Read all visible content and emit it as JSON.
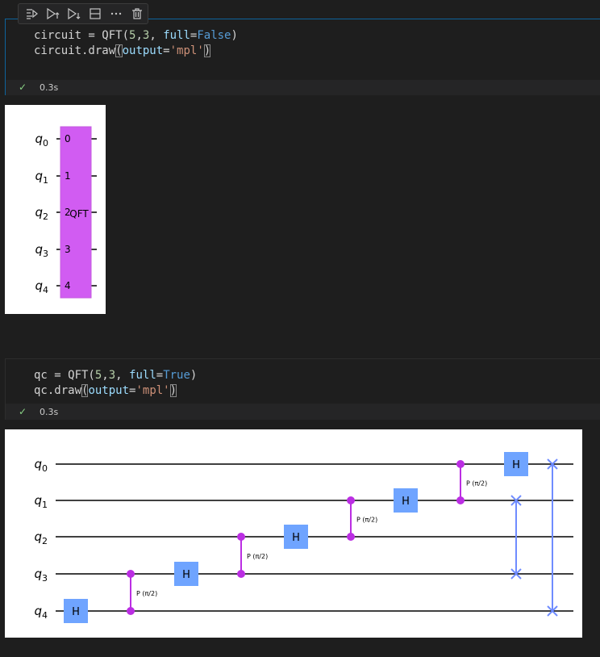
{
  "toolbar": {
    "buttons": [
      "run-by-line-icon",
      "execute-above-icon",
      "execute-below-icon",
      "split-cell-icon",
      "more-icon",
      "delete-icon"
    ]
  },
  "cell1": {
    "line1": {
      "a": "circuit = QFT(",
      "b": "5",
      "c": ",",
      "d": "3",
      "e": ", ",
      "f": "full",
      "g": "=",
      "h": "False",
      "i": ")"
    },
    "line2": {
      "a": "circuit.draw",
      "b": "(",
      "c": "output",
      "d": "=",
      "e": "'mpl'",
      "f": ")"
    },
    "status_check": "✓",
    "status_time": "0.3s"
  },
  "cell2": {
    "line1": {
      "a": "qc = QFT(",
      "b": "5",
      "c": ",",
      "d": "3",
      "e": ", ",
      "f": "full",
      "g": "=",
      "h": "True",
      "i": ")"
    },
    "line2": {
      "a": "qc.draw",
      "b": "(",
      "c": "output",
      "d": "=",
      "e": "'mpl'",
      "f": ")"
    },
    "status_check": "✓",
    "status_time": "0.3s"
  },
  "output1": {
    "qubit_labels": [
      "q",
      "q",
      "q",
      "q",
      "q"
    ],
    "qubit_subs": [
      "0",
      "1",
      "2",
      "3",
      "4"
    ],
    "block_indices": [
      "0",
      "1",
      "2",
      "3",
      "4"
    ],
    "block_label": "QFT",
    "block_color": "#d15cf2"
  },
  "output2": {
    "qubit_labels": [
      "q",
      "q",
      "q",
      "q",
      "q"
    ],
    "qubit_subs": [
      "0",
      "1",
      "2",
      "3",
      "4"
    ],
    "h_label": "H",
    "p_label": "P (π/2)",
    "h_color": "#6fa4ff",
    "cp_color": "#bb2ee3",
    "swap_color": "#6f8cff"
  }
}
